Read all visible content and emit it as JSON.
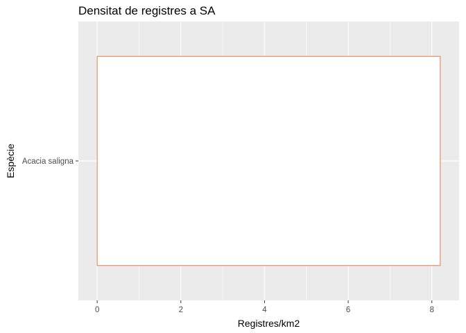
{
  "chart_data": {
    "type": "bar",
    "orientation": "horizontal",
    "title": "Densitat de registres a SA",
    "xlabel": "Registres/km2",
    "ylabel": "Espècie",
    "categories": [
      "Acacia saligna"
    ],
    "values": [
      8.2
    ],
    "xlim": [
      -0.45,
      8.65
    ],
    "xticks": [
      0,
      2,
      4,
      6,
      8
    ],
    "grid": true,
    "bar_fill": "#ffffff",
    "bar_outline": "#e8784a",
    "panel_background": "#ebebeb",
    "grid_color": "#ffffff"
  }
}
